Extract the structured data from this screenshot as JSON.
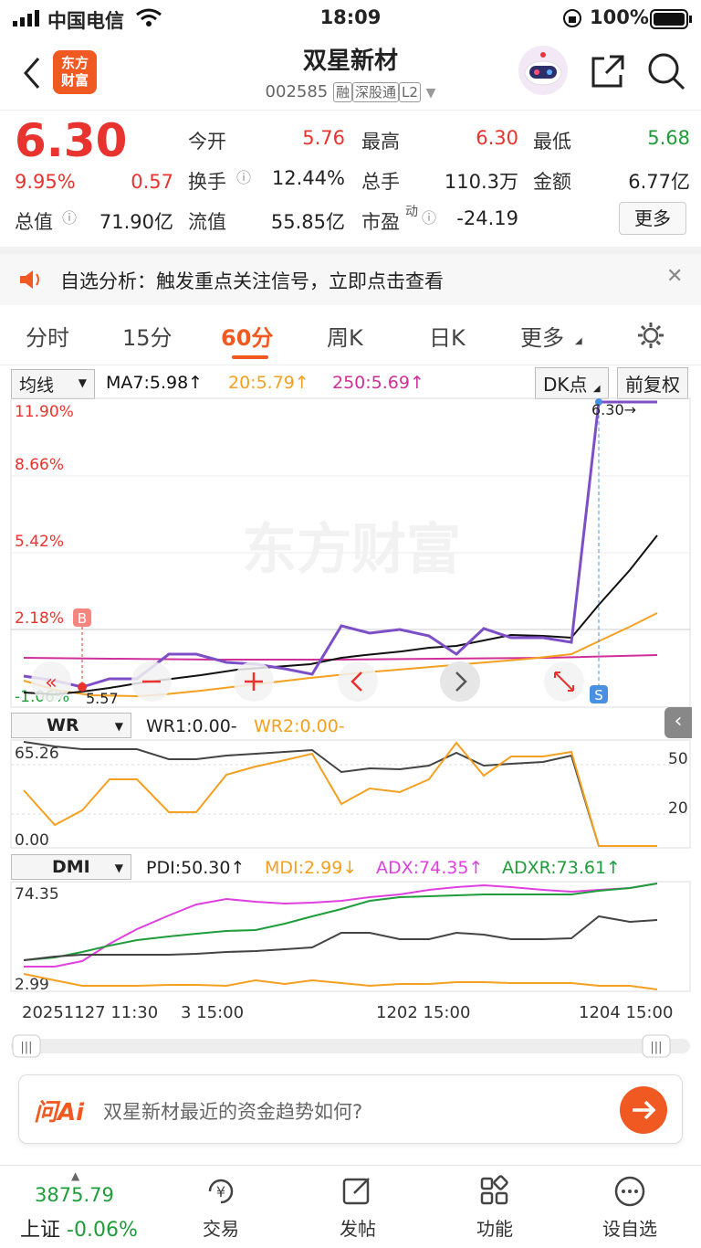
{
  "status": {
    "carrier": "中国电信",
    "time": "18:09",
    "battery": "100%"
  },
  "header": {
    "logo_text": "东方\n财富",
    "stock_name": "双星新材",
    "stock_code": "002585",
    "tags": [
      "融",
      "深股通",
      "L2"
    ]
  },
  "quote": {
    "price": "6.30",
    "change_pct": "9.95%",
    "change": "0.57",
    "open_label": "今开",
    "open": "5.76",
    "high_label": "最高",
    "high": "6.30",
    "low_label": "最低",
    "low": "5.68",
    "turnover_label": "换手",
    "turnover": "12.44%",
    "volume_label": "总手",
    "volume": "110.3万",
    "amount_label": "金额",
    "amount": "6.77亿",
    "total_cap_label": "总值",
    "total_cap": "71.90亿",
    "float_cap_label": "流值",
    "float_cap": "55.85亿",
    "pe_label": "市盈",
    "pe_sup": "动",
    "pe": "-24.19",
    "more": "更多"
  },
  "banner": {
    "text": "自选分析：触发重点关注信号，立即点击查看"
  },
  "tabs": [
    "分时",
    "15分",
    "60分",
    "周K",
    "日K",
    "更多"
  ],
  "chart": {
    "ma_select": "均线",
    "ma7": "MA7:5.98↑",
    "ma20": "20:5.79↑",
    "ma250": "250:5.69↑",
    "dk": "DK点",
    "adjust": "前复权",
    "watermark": "东方财富",
    "y_labels": [
      "11.90%",
      "8.66%",
      "5.42%",
      "2.18%",
      "-1.06%"
    ],
    "last_price": "6.30→",
    "low_price": "5.57",
    "wr_select": "WR",
    "wr1": "WR1:0.00-",
    "wr2": "WR2:0.00-",
    "wr_top": "65.26",
    "wr_bottom": "0.00",
    "wr_r50": "50",
    "wr_r20": "20",
    "dmi_select": "DMI",
    "pdi": "PDI:50.30↑",
    "mdi": "MDI:2.99↓",
    "adx": "ADX:74.35↑",
    "adxr": "ADXR:73.61↑",
    "dmi_top": "74.35",
    "dmi_bottom": "2.99",
    "x_labels": [
      "20251127 11:30",
      "3 15:00",
      "1202 15:00",
      "1204 15:00"
    ],
    "b_marker": "B",
    "s_marker": "S"
  },
  "ask": {
    "brand": "问Ai",
    "placeholder": "双星新材最近的资金趋势如何?"
  },
  "bottom": {
    "index_value": "3875.79",
    "index_name": "上证",
    "index_change": "-0.06%",
    "items": [
      "交易",
      "发帖",
      "功能",
      "设自选"
    ]
  },
  "colors": {
    "up": "#e8332e",
    "down": "#1f9d3a",
    "accent": "#f05a22",
    "ma7": "#111111",
    "ma20": "#f5a020",
    "ma250": "#d02f9a",
    "price": "#7d4fc7"
  }
}
